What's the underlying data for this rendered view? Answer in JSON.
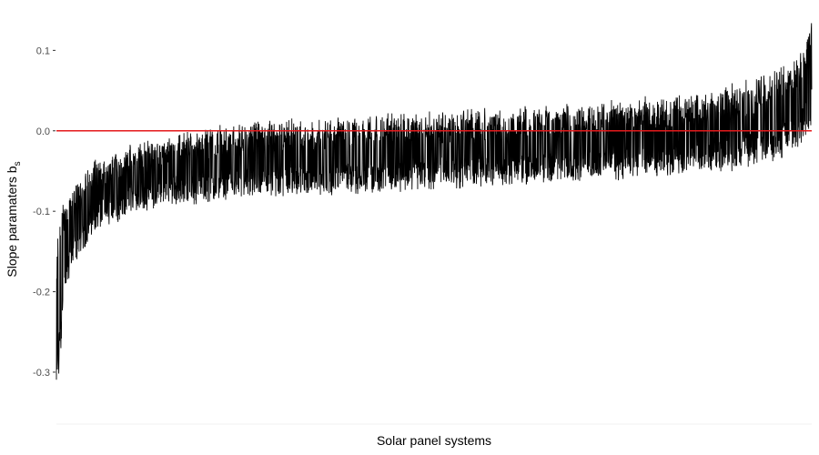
{
  "chart_data": {
    "type": "line",
    "xlabel": "Solar panel systems",
    "ylabel": "Slope paramaters b",
    "ylabel_subscript": "s",
    "ylim": [
      -0.36,
      0.14
    ],
    "yticks": [
      {
        "value": 0.1,
        "label": "0.1"
      },
      {
        "value": 0.0,
        "label": "0.0"
      },
      {
        "value": -0.1,
        "label": "-0.1"
      },
      {
        "value": -0.2,
        "label": "-0.2"
      },
      {
        "value": -0.3,
        "label": "-0.3"
      }
    ],
    "grid": false,
    "reference_line": {
      "y": 0.0,
      "color": "#e41a1c"
    },
    "line_color": "#000000",
    "series_curve": {
      "x": [
        0,
        0.01,
        0.02,
        0.05,
        0.1,
        0.15,
        0.2,
        0.3,
        0.4,
        0.5,
        0.6,
        0.7,
        0.8,
        0.85,
        0.9,
        0.95,
        0.98,
        1.0
      ],
      "lower": [
        -0.36,
        -0.22,
        -0.17,
        -0.125,
        -0.1,
        -0.09,
        -0.085,
        -0.08,
        -0.075,
        -0.07,
        -0.065,
        -0.06,
        -0.055,
        -0.05,
        -0.045,
        -0.035,
        -0.02,
        0.0
      ],
      "upper": [
        -0.14,
        -0.09,
        -0.07,
        -0.04,
        -0.02,
        -0.01,
        0.0,
        0.01,
        0.015,
        0.02,
        0.025,
        0.03,
        0.04,
        0.045,
        0.055,
        0.07,
        0.09,
        0.14
      ]
    }
  }
}
